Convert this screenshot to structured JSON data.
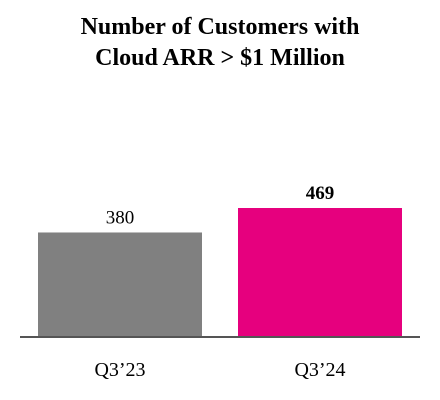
{
  "chart_data": {
    "type": "bar",
    "title": [
      "Number of Customers with",
      "Cloud ARR > $1 Million"
    ],
    "categories": [
      "Q3’23",
      "Q3’24"
    ],
    "values": [
      380,
      469
    ],
    "colors": [
      "#808080",
      "#e6007e"
    ],
    "highlight_index": 1,
    "axis_color": "#555555",
    "xlabel": "",
    "ylabel": "",
    "ylim": [
      0,
      469
    ]
  }
}
